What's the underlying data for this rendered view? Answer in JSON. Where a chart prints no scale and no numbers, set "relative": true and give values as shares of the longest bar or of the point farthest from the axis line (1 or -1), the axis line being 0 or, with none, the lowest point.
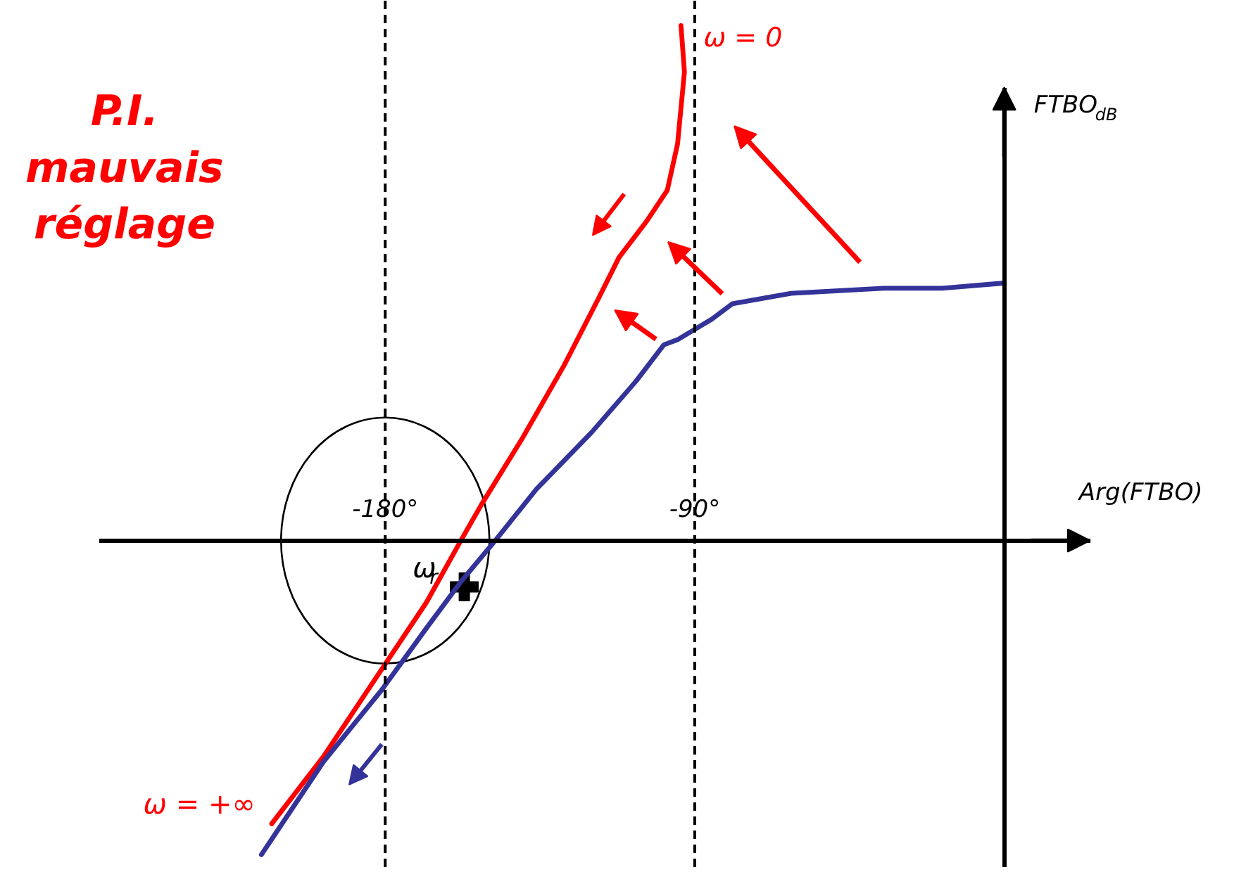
{
  "chart_data": {
    "type": "line",
    "title": "P.I. mauvais réglage",
    "xlabel": "Arg(FTBO)",
    "ylabel": "FTBO$_{dB}$",
    "relative": true,
    "xlim": [
      -263,
      25
    ],
    "xticks": [
      {
        "value": -180,
        "label": "-180°"
      },
      {
        "value": -90,
        "label": "-90°"
      }
    ],
    "ref_lines": [
      {
        "axis": "x",
        "value": -180,
        "color": "#000000",
        "line_style": "dashed"
      },
      {
        "axis": "x",
        "value": -90,
        "color": "#000000",
        "line_style": "dashed"
      }
    ],
    "series": [
      {
        "color": "#ff0000",
        "x": [
          -94,
          -93,
          -95,
          -98,
          -104,
          -112,
          -118,
          -128,
          -140,
          -152,
          -158,
          -168,
          -181,
          -198,
          -213
        ],
        "values": [
          1.0,
          0.91,
          0.77,
          0.68,
          0.62,
          0.55,
          0.47,
          0.34,
          0.2,
          0.07,
          0.0,
          -0.12,
          -0.25,
          -0.42,
          -0.55
        ]
      },
      {
        "color": "#333399",
        "x": [
          0,
          -18,
          -35,
          -62,
          -79,
          -85,
          -90,
          -95,
          -99,
          -107,
          -120,
          -136,
          -148,
          -158,
          -168,
          -181,
          -198,
          -216
        ],
        "values": [
          0.5,
          0.49,
          0.49,
          0.48,
          0.46,
          0.43,
          0.41,
          0.39,
          0.38,
          0.31,
          0.21,
          0.1,
          0.0,
          -0.08,
          -0.17,
          -0.29,
          -0.43,
          -0.61
        ]
      },
      {
        "type": "scatter",
        "marker": "cross",
        "color": "#000000",
        "x": [
          -157
        ],
        "values": [
          -0.09
        ]
      }
    ],
    "annotations": [
      {
        "text": "ω = 0",
        "x": -94,
        "y": 1.0
      },
      {
        "text": "ω$_{r}$",
        "x": -157,
        "y": -0.09
      },
      {
        "text": "ω = +∞",
        "x": -213,
        "y": -0.55
      }
    ]
  }
}
